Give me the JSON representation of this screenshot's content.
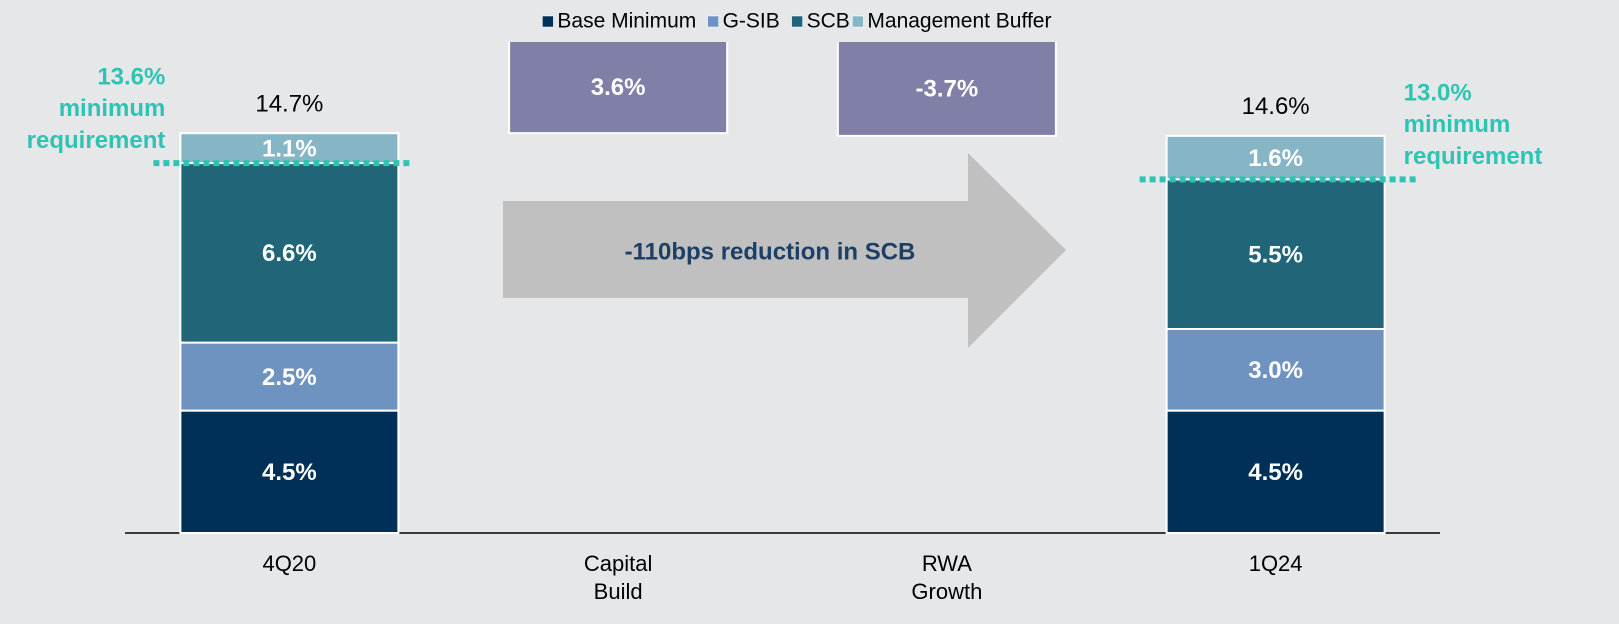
{
  "chart_data": {
    "type": "waterfall",
    "categories": [
      "4Q20",
      "Capital Build",
      "RWA Growth",
      "1Q24"
    ],
    "series": [
      {
        "name": "Base Minimum",
        "color": "#003057",
        "values": [
          4.5,
          null,
          null,
          4.5
        ],
        "value_labels": [
          "4.5%",
          null,
          null,
          "4.5%"
        ]
      },
      {
        "name": "G-SIB",
        "color": "#6f93c0",
        "values": [
          2.5,
          null,
          null,
          3.0
        ],
        "value_labels": [
          "2.5%",
          null,
          null,
          "3.0%"
        ]
      },
      {
        "name": "SCB",
        "color": "#216678",
        "values": [
          6.6,
          null,
          null,
          5.5
        ],
        "value_labels": [
          "6.6%",
          null,
          null,
          "5.5%"
        ]
      },
      {
        "name": "Management Buffer",
        "color": "#86b6c6",
        "values": [
          1.1,
          null,
          null,
          1.6
        ],
        "value_labels": [
          "1.1%",
          null,
          null,
          "1.6%"
        ]
      }
    ],
    "totals": [
      14.7,
      null,
      null,
      14.6
    ],
    "total_labels": [
      "14.7%",
      null,
      null,
      "14.6%"
    ],
    "changes": {
      "color": "#7f7fa8",
      "values": [
        null,
        3.6,
        -3.7,
        null
      ],
      "value_labels": [
        null,
        "3.6%",
        "-3.7%",
        null
      ]
    },
    "min_requirements": [
      {
        "category": 0,
        "value": 13.6,
        "label": "13.6%",
        "text": "minimum requirement"
      },
      {
        "category": 3,
        "value": 13.0,
        "label": "13.0%",
        "text": "minimum requirement"
      }
    ],
    "min_requirement_color": "#2ec4b4",
    "annotation": "-110bps reduction in SCB",
    "ylim": [
      0,
      15
    ]
  }
}
